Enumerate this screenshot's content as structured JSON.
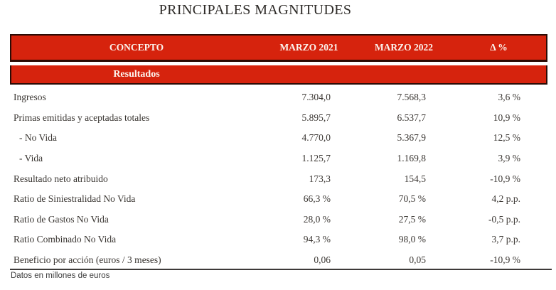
{
  "title": "PRINCIPALES MAGNITUDES",
  "table": {
    "columns": [
      "CONCEPTO",
      "MARZO 2021",
      "MARZO 2022",
      "Δ %"
    ],
    "section": "Resultados",
    "rows": [
      {
        "concepto": "Ingresos",
        "indent": false,
        "marzo_2021": "7.304,0",
        "marzo_2022": "7.568,3",
        "delta": "3,6 %"
      },
      {
        "concepto": "Primas emitidas y aceptadas totales",
        "indent": false,
        "marzo_2021": "5.895,7",
        "marzo_2022": "6.537,7",
        "delta": "10,9 %"
      },
      {
        "concepto": "- No Vida",
        "indent": true,
        "marzo_2021": "4.770,0",
        "marzo_2022": "5.367,9",
        "delta": "12,5 %"
      },
      {
        "concepto": "- Vida",
        "indent": true,
        "marzo_2021": "1.125,7",
        "marzo_2022": "1.169,8",
        "delta": "3,9 %"
      },
      {
        "concepto": "Resultado neto atribuido",
        "indent": false,
        "marzo_2021": "173,3",
        "marzo_2022": "154,5",
        "delta": "-10,9 %"
      },
      {
        "concepto": "Ratio de Siniestralidad No Vida",
        "indent": false,
        "marzo_2021": "66,3 %",
        "marzo_2022": "70,5 %",
        "delta": "4,2 p.p."
      },
      {
        "concepto": "Ratio de Gastos No Vida",
        "indent": false,
        "marzo_2021": "28,0 %",
        "marzo_2022": "27,5 %",
        "delta": "-0,5 p.p."
      },
      {
        "concepto": "Ratio Combinado No Vida",
        "indent": false,
        "marzo_2021": "94,3 %",
        "marzo_2022": "98,0 %",
        "delta": "3,7 p.p."
      },
      {
        "concepto": "Beneficio por acción (euros / 3 meses)",
        "indent": false,
        "marzo_2021": "0,06",
        "marzo_2022": "0,05",
        "delta": "-10,9 %"
      }
    ],
    "footnote": "Datos en millones de euros"
  },
  "colors": {
    "accent_red": "#d6230d",
    "band_border": "#2b0b05",
    "body_text": "#3a3632"
  }
}
